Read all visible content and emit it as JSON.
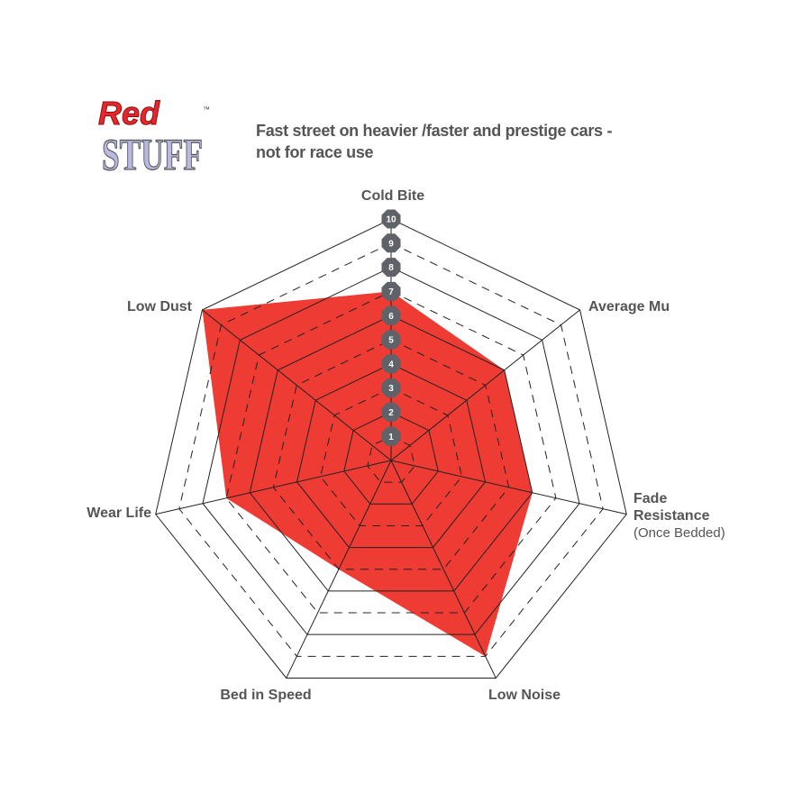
{
  "logo": {
    "word1": "Red",
    "word2": "STUFF",
    "tm": "™"
  },
  "subtitle_lines": [
    "Fast street on heavier /faster and prestige cars -",
    "not for race use"
  ],
  "chart_data": {
    "type": "radar",
    "title": "",
    "axes": [
      {
        "label": [
          "Cold Bite"
        ],
        "value": 7
      },
      {
        "label": [
          "Average Mu"
        ],
        "value": 6
      },
      {
        "label": [
          "Fade",
          "Resistance"
        ],
        "sublabel": "(Once Bedded)",
        "value": 6
      },
      {
        "label": [
          "Low Noise"
        ],
        "value": 9
      },
      {
        "label": [
          "Bed in Speed"
        ],
        "value": 5
      },
      {
        "label": [
          "Wear Life"
        ],
        "value": 7
      },
      {
        "label": [
          "Low Dust"
        ],
        "value": 10
      }
    ],
    "scale": {
      "min": 0,
      "max": 10,
      "ticks": [
        "1",
        "2",
        "3",
        "4",
        "5",
        "6",
        "7",
        "8",
        "9",
        "10"
      ]
    },
    "grid": "solid even rings, dashed odd rings",
    "colors": {
      "fill": "#ee3b33",
      "grid": "#222222",
      "tick_badge": "#5f6268",
      "label": "#555555"
    }
  }
}
